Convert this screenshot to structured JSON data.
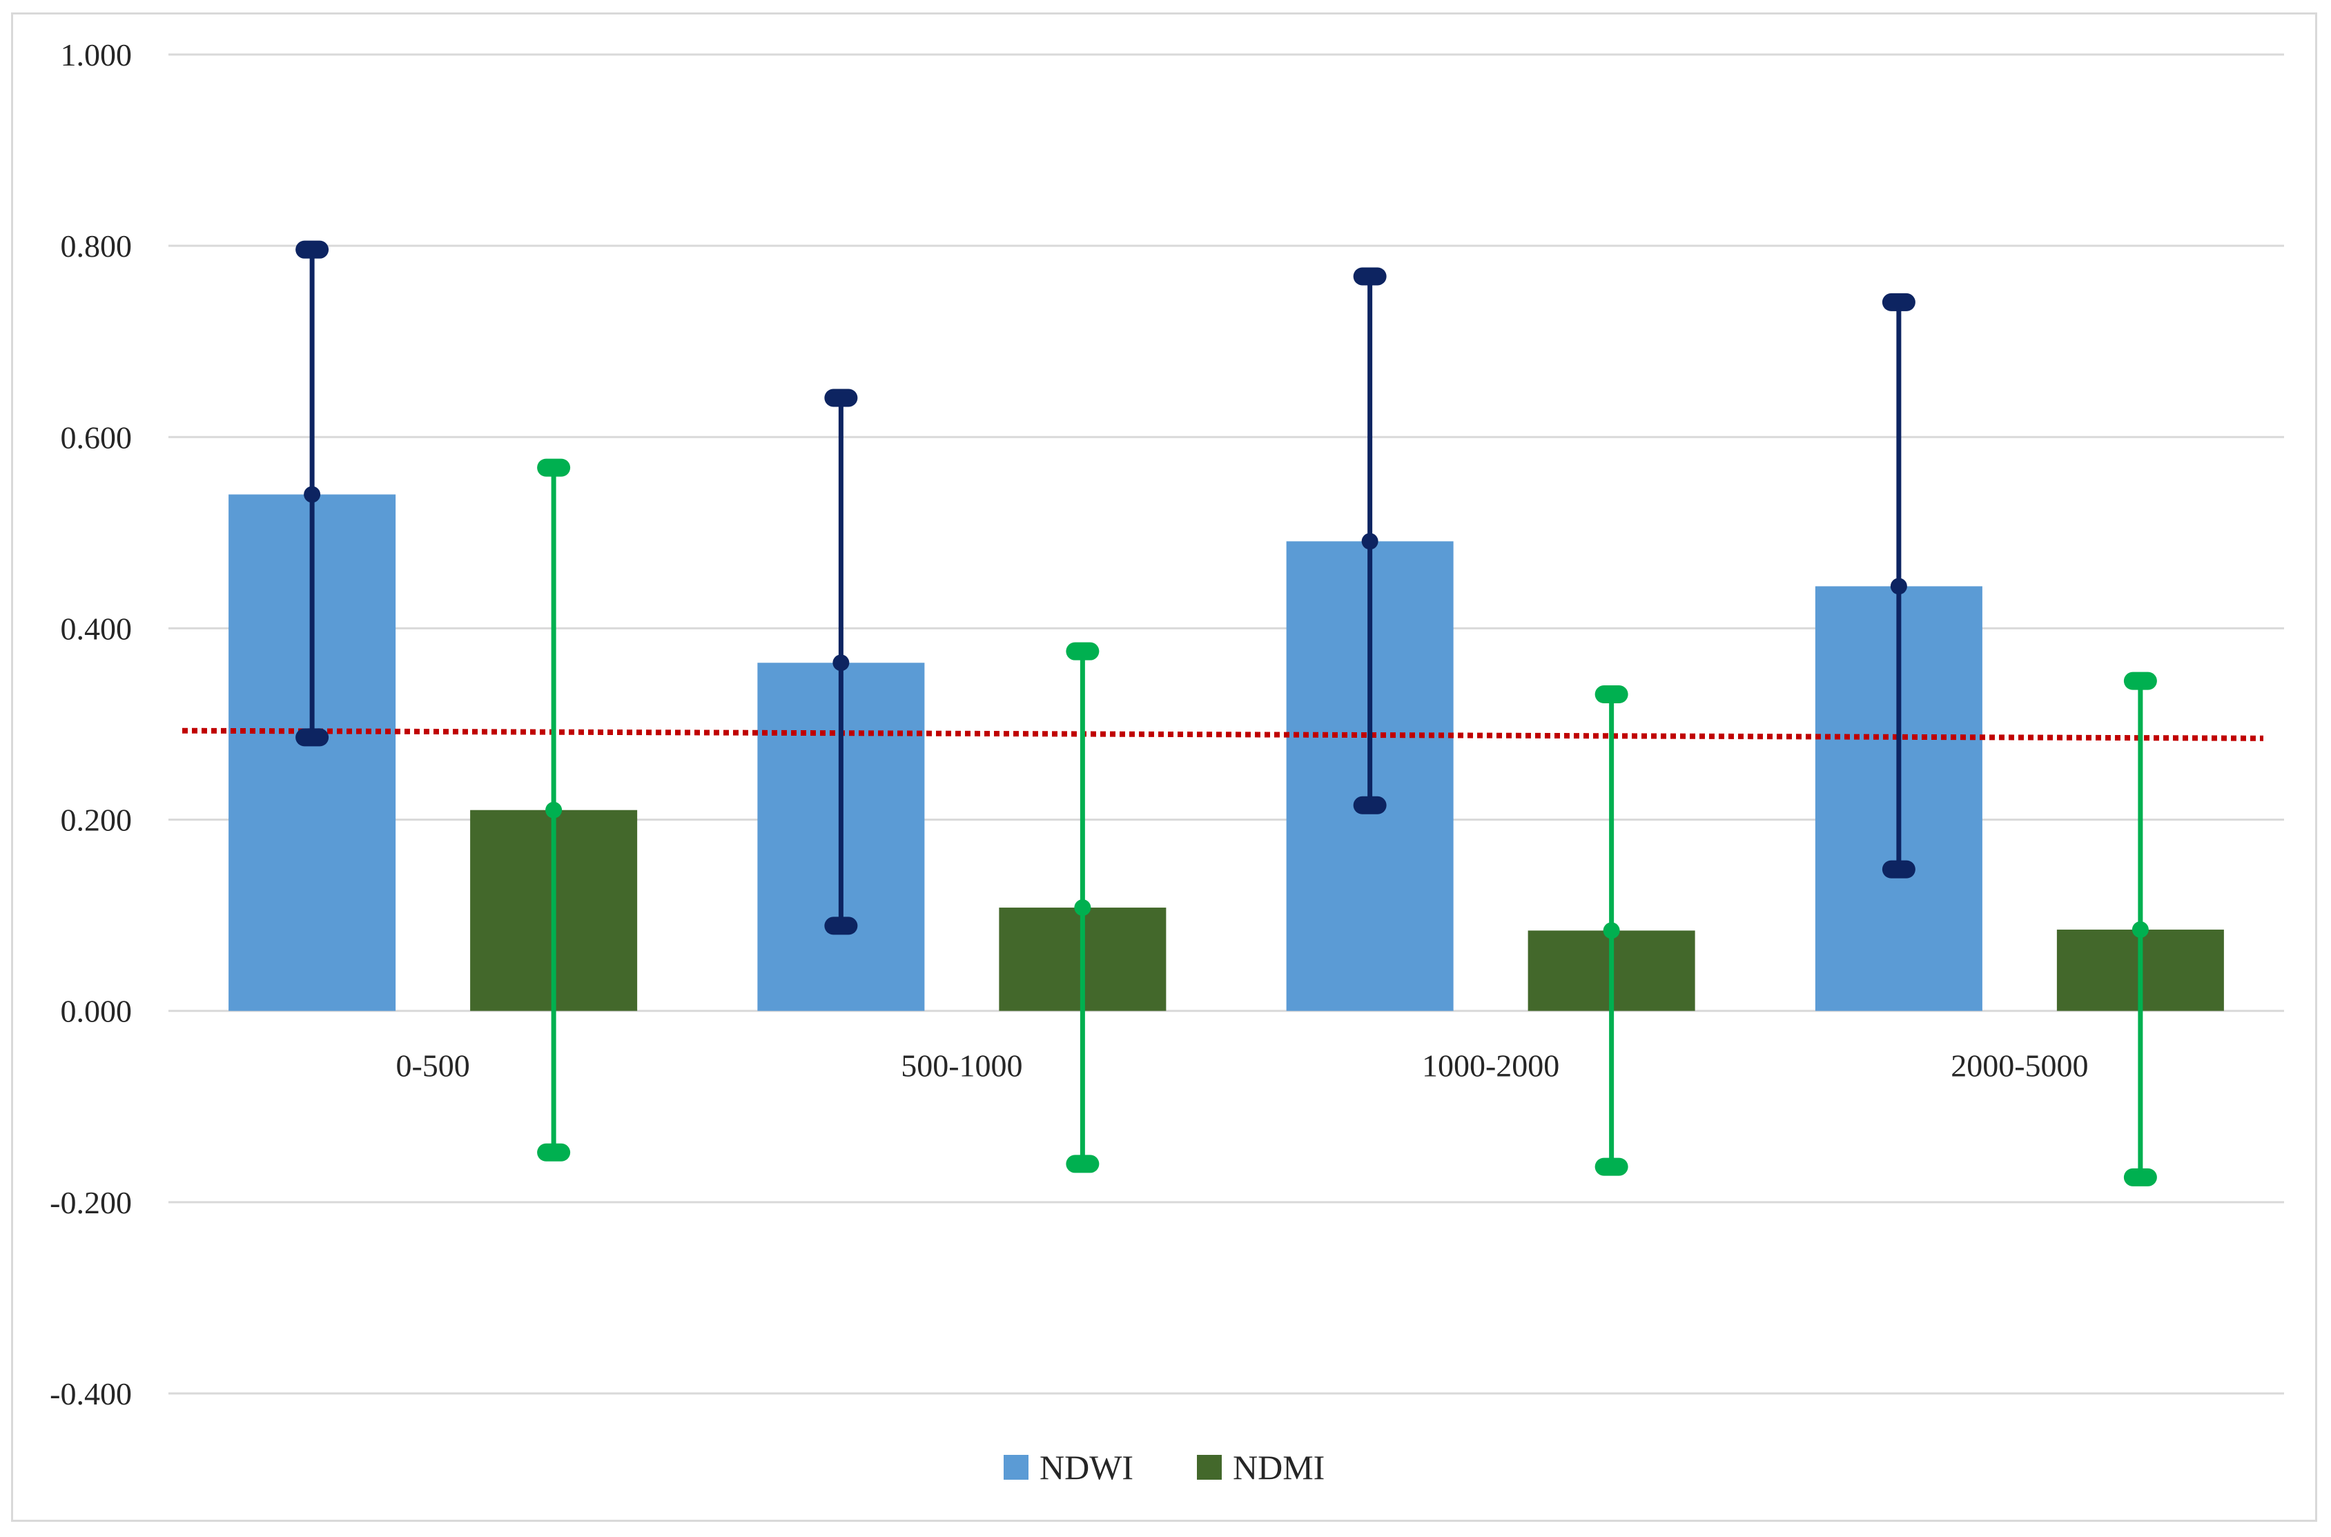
{
  "chart_data": {
    "type": "bar",
    "title": "",
    "xlabel": "",
    "ylabel": "",
    "ylim": [
      -0.4,
      1.0
    ],
    "yticks": [
      1.0,
      0.8,
      0.6,
      0.4,
      0.2,
      0.0,
      -0.2,
      -0.4
    ],
    "ytick_labels": [
      "1.000",
      "0.800",
      "0.600",
      "0.400",
      "0.200",
      "0.000",
      "-0.200",
      "-0.400"
    ],
    "grid": true,
    "legend_position": "bottom-center",
    "categories": [
      "0-500",
      "500-1000",
      "1000-2000",
      "2000-5000"
    ],
    "series": [
      {
        "name": "NDWI",
        "color": "#5b9bd5",
        "errorbar_color": "#0d2461",
        "values": [
          0.54,
          0.364,
          0.491,
          0.444
        ],
        "error_low": [
          0.286,
          0.089,
          0.215,
          0.148
        ],
        "error_high": [
          0.796,
          0.641,
          0.768,
          0.741
        ]
      },
      {
        "name": "NDMI",
        "color": "#43682b",
        "errorbar_color": "#00b050",
        "values": [
          0.21,
          0.108,
          0.084,
          0.085
        ],
        "error_low": [
          -0.148,
          -0.16,
          -0.163,
          -0.174
        ],
        "error_high": [
          0.568,
          0.376,
          0.331,
          0.345
        ]
      }
    ],
    "threshold_line": {
      "color": "#c00000",
      "style": "dotted",
      "start_value": 0.293,
      "end_value": 0.285
    }
  }
}
